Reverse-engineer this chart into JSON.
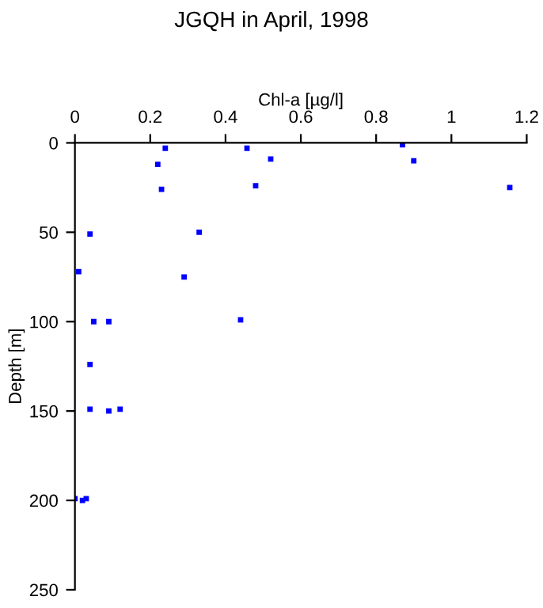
{
  "chart_data": {
    "type": "scatter",
    "title": "JGQH in April, 1998",
    "xlabel": "Chl-a [µg/l]",
    "ylabel": "Depth [m]",
    "x": [
      0.24,
      0.457,
      0.22,
      0.23,
      0.48,
      0.52,
      0.87,
      0.9,
      1.155,
      0.33,
      0.04,
      0.01,
      0.29,
      0.05,
      0.09,
      0.44,
      0.04,
      0.04,
      0.09,
      0.12,
      0,
      0.02,
      0.03
    ],
    "series": [
      {
        "color": "#0000ff",
        "values": [
          3,
          3,
          12,
          26,
          24,
          9,
          1,
          10,
          25,
          50,
          51,
          72,
          75,
          100,
          100,
          99,
          124,
          149,
          150,
          149,
          199,
          200,
          199
        ]
      }
    ],
    "xlim": [
      0,
      1.2
    ],
    "xticks": [
      0,
      0.2,
      0.4,
      0.6,
      0.8,
      1,
      1.2
    ],
    "ylim": [
      250,
      0
    ],
    "yticks": [
      0,
      50,
      100,
      150,
      200,
      250
    ],
    "marker": "square",
    "grid": false
  }
}
